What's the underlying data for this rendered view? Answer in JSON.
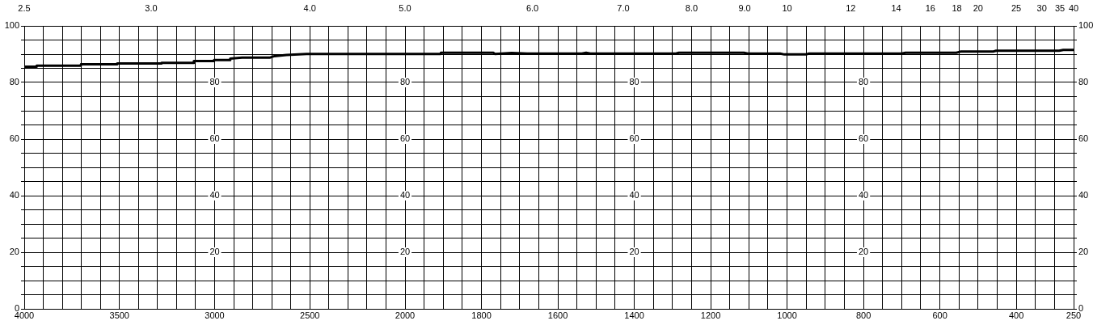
{
  "chart_data": [
    {
      "type": "line",
      "color": "#000000",
      "marker": "none",
      "line_style": "solid",
      "grid": true,
      "annotations": [
        "80",
        "60",
        "40",
        "20",
        "2.5",
        "3.0",
        "4.0",
        "5.0"
      ],
      "x": [
        4000,
        3936,
        3935,
        3703,
        3702,
        3513,
        3512,
        3280,
        3279,
        3110,
        3109,
        3004,
        3003,
        2919,
        2918,
        2856,
        2708,
        2686,
        2623,
        2517,
        2000
      ],
      "values": [
        85.6,
        85.6,
        85.9,
        85.9,
        86.4,
        86.4,
        86.7,
        86.7,
        86.9,
        86.9,
        87.6,
        87.6,
        87.9,
        87.9,
        88.4,
        88.8,
        88.8,
        89.3,
        89.7,
        90.1,
        90.1
      ],
      "xlim": [
        4000,
        2000
      ],
      "xticks": [
        4000,
        {
          "value": 3900,
          "label": null
        },
        {
          "value": 3800,
          "label": null
        },
        {
          "value": 3700,
          "label": null
        },
        {
          "value": 3600,
          "label": null
        },
        3500,
        {
          "value": 3400,
          "label": null
        },
        {
          "value": 3300,
          "label": null
        },
        {
          "value": 3200,
          "label": null
        },
        {
          "value": 3100,
          "label": null
        },
        3000,
        {
          "value": 2900,
          "label": null
        },
        {
          "value": 2800,
          "label": null
        },
        {
          "value": 2700,
          "label": null
        },
        {
          "value": 2600,
          "label": null
        },
        2500,
        {
          "value": 2400,
          "label": null
        },
        {
          "value": 2300,
          "label": null
        },
        {
          "value": 2200,
          "label": null
        },
        {
          "value": 2100,
          "label": null
        },
        2000
      ],
      "ylim": [
        0,
        100
      ],
      "yticks": [
        0,
        {
          "value": 5,
          "label": null
        },
        {
          "value": 10,
          "label": null
        },
        {
          "value": 15,
          "label": null
        },
        20,
        {
          "value": 25,
          "label": null
        },
        {
          "value": 30,
          "label": null
        },
        {
          "value": 35,
          "label": null
        },
        40,
        {
          "value": 45,
          "label": null
        },
        {
          "value": 50,
          "label": null
        },
        {
          "value": 55,
          "label": null
        },
        60,
        {
          "value": 65,
          "label": null
        },
        {
          "value": 70,
          "label": null
        },
        {
          "value": 75,
          "label": null
        },
        80,
        {
          "value": 85,
          "label": null
        },
        {
          "value": 90,
          "label": null
        },
        {
          "value": 95,
          "label": null
        },
        100
      ]
    },
    {
      "type": "line",
      "marker": "none",
      "line_style": "solid",
      "grid": true,
      "annotations": [
        "80",
        "60",
        "40",
        "20",
        "80",
        "60",
        "40",
        "20",
        "80",
        "60",
        "40",
        "20",
        "6.0",
        "7.0",
        "8.0",
        "9.0",
        "10",
        "12",
        "14",
        "16",
        "18",
        "20",
        "25",
        "30",
        "35",
        "40"
      ],
      "series": [
        {
          "color": "#000000",
          "axis": "y2",
          "x": [
            2000,
            1907,
            1906,
            1769,
            1765,
            1721,
            1680,
            1537,
            1526,
            1515,
            1291,
            1283,
            1113,
            1103,
            1018,
            1007,
            950,
            944,
            700,
            690,
            557,
            546,
            461,
            453,
            288,
            277,
            250
          ],
          "values": [
            90.1,
            90.1,
            90.5,
            90.5,
            90.1,
            90.4,
            90.2,
            90.2,
            90.5,
            90.2,
            90.2,
            90.5,
            90.5,
            90.2,
            90.2,
            89.9,
            89.9,
            90.2,
            90.2,
            90.5,
            90.5,
            90.9,
            90.9,
            91.2,
            91.2,
            91.5,
            91.5
          ]
        }
      ],
      "xlim": [
        2000,
        250
      ],
      "xticks": [
        {
          "value": 1950,
          "label": null
        },
        {
          "value": 1900,
          "label": null
        },
        {
          "value": 1850,
          "label": null
        },
        1800,
        {
          "value": 1750,
          "label": null
        },
        {
          "value": 1700,
          "label": null
        },
        {
          "value": 1650,
          "label": null
        },
        1600,
        {
          "value": 1550,
          "label": null
        },
        {
          "value": 1500,
          "label": null
        },
        {
          "value": 1450,
          "label": null
        },
        1400,
        {
          "value": 1350,
          "label": null
        },
        {
          "value": 1300,
          "label": null
        },
        {
          "value": 1250,
          "label": null
        },
        1200,
        {
          "value": 1150,
          "label": null
        },
        {
          "value": 1100,
          "label": null
        },
        {
          "value": 1050,
          "label": null
        },
        1000,
        {
          "value": 950,
          "label": null
        },
        {
          "value": 900,
          "label": null
        },
        {
          "value": 850,
          "label": null
        },
        800,
        {
          "value": 750,
          "label": null
        },
        {
          "value": 700,
          "label": null
        },
        {
          "value": 650,
          "label": null
        },
        600,
        {
          "value": 550,
          "label": null
        },
        {
          "value": 500,
          "label": null
        },
        {
          "value": 450,
          "label": null
        },
        400,
        {
          "value": 350,
          "label": null
        },
        {
          "value": 300,
          "label": null
        },
        250
      ],
      "y2lim": [
        0,
        100
      ],
      "y2ticks": [
        0,
        {
          "value": 5,
          "label": null
        },
        {
          "value": 10,
          "label": null
        },
        {
          "value": 15,
          "label": null
        },
        20,
        {
          "value": 25,
          "label": null
        },
        {
          "value": 30,
          "label": null
        },
        {
          "value": 35,
          "label": null
        },
        40,
        {
          "value": 45,
          "label": null
        },
        {
          "value": 50,
          "label": null
        },
        {
          "value": 55,
          "label": null
        },
        60,
        {
          "value": 65,
          "label": null
        },
        {
          "value": 70,
          "label": null
        },
        {
          "value": 75,
          "label": null
        },
        80,
        {
          "value": 85,
          "label": null
        },
        {
          "value": 90,
          "label": null
        },
        {
          "value": 95,
          "label": null
        },
        100
      ]
    }
  ]
}
